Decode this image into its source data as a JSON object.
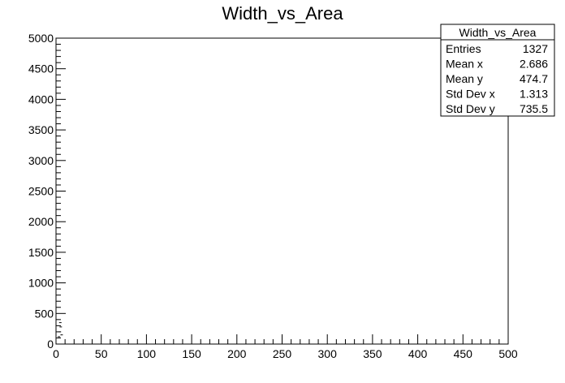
{
  "chart_data": {
    "type": "scatter",
    "title": "Width_vs_Area",
    "xlabel": "",
    "ylabel": "",
    "xlim": [
      0,
      500
    ],
    "ylim": [
      0,
      5000
    ],
    "x_ticks": [
      0,
      50,
      100,
      150,
      200,
      250,
      300,
      350,
      400,
      450,
      500
    ],
    "y_ticks": [
      0,
      500,
      1000,
      1500,
      2000,
      2500,
      3000,
      3500,
      4000,
      4500,
      5000
    ],
    "grid": false,
    "stats_box": {
      "title": "Width_vs_Area",
      "placement": "top-right",
      "rows": [
        {
          "label": "Entries",
          "value": "1327"
        },
        {
          "label": "Mean x",
          "value": "2.686"
        },
        {
          "label": "Mean y",
          "value": "474.7"
        },
        {
          "label": "Std Dev x",
          "value": "1.313"
        },
        {
          "label": "Std Dev y",
          "value": "735.5"
        }
      ]
    }
  }
}
